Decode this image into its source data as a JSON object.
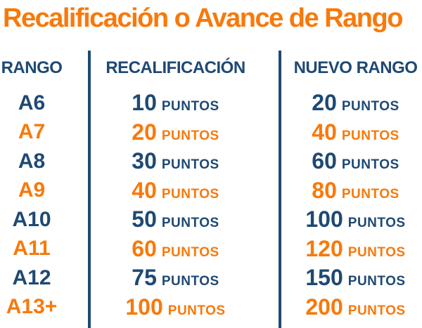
{
  "title": "Recalificación o Avance de Rango",
  "colors": {
    "orange": "#F8790B",
    "navy": "#1E4973"
  },
  "table": {
    "unit": "PUNTOS",
    "headers": [
      {
        "label": "RANGO"
      },
      {
        "label": "RECALIFICACIÓN"
      },
      {
        "label": "NUEVO RANGO"
      }
    ],
    "rows": [
      {
        "rank": "A6",
        "recalificacion": "10",
        "nuevo": "20",
        "color": "navy"
      },
      {
        "rank": "A7",
        "recalificacion": "20",
        "nuevo": "40",
        "color": "orange"
      },
      {
        "rank": "A8",
        "recalificacion": "30",
        "nuevo": "60",
        "color": "navy"
      },
      {
        "rank": "A9",
        "recalificacion": "40",
        "nuevo": "80",
        "color": "orange"
      },
      {
        "rank": "A10",
        "recalificacion": "50",
        "nuevo": "100",
        "color": "navy"
      },
      {
        "rank": "A11",
        "recalificacion": "60",
        "nuevo": "120",
        "color": "orange"
      },
      {
        "rank": "A12",
        "recalificacion": "75",
        "nuevo": "150",
        "color": "navy"
      },
      {
        "rank": "A13+",
        "recalificacion": "100",
        "nuevo": "200",
        "color": "orange"
      }
    ]
  },
  "chart_data": {
    "type": "table",
    "title": "Recalificación o Avance de Rango",
    "columns": [
      "RANGO",
      "RECALIFICACIÓN",
      "NUEVO RANGO"
    ],
    "rows": [
      [
        "A6",
        "10 PUNTOS",
        "20 PUNTOS"
      ],
      [
        "A7",
        "20 PUNTOS",
        "40 PUNTOS"
      ],
      [
        "A8",
        "30 PUNTOS",
        "60 PUNTOS"
      ],
      [
        "A9",
        "40 PUNTOS",
        "80 PUNTOS"
      ],
      [
        "A10",
        "50 PUNTOS",
        "100 PUNTOS"
      ],
      [
        "A11",
        "60 PUNTOS",
        "120 PUNTOS"
      ],
      [
        "A12",
        "75 PUNTOS",
        "150 PUNTOS"
      ],
      [
        "A13+",
        "100 PUNTOS",
        "200 PUNTOS"
      ]
    ]
  }
}
